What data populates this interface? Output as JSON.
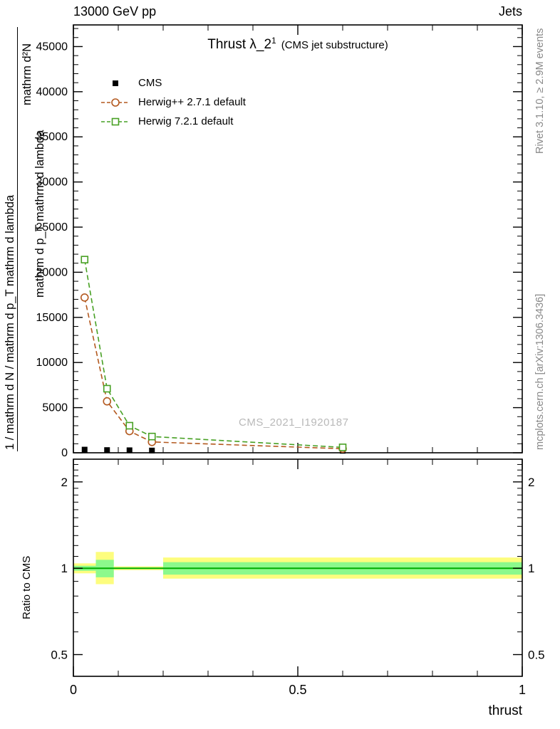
{
  "header": {
    "left": "13000 GeV pp",
    "right": "Jets"
  },
  "title": {
    "main": "Thrust λ_2",
    "sup": "1",
    "paren": "(CMS jet substructure)"
  },
  "watermark": "CMS_2021_I1920187",
  "side_notes": {
    "top_right": "Rivet 3.1.10, ≥ 2.9M events",
    "bottom_right": "mcplots.cern.ch [arXiv:1306.3436]"
  },
  "axes": {
    "ylabel_fragments": {
      "outer": "1 / mathrm d N / mathrm d p_T mathrm d lambda",
      "numerator": "mathrm d²N",
      "denominator": "mathrm d p_T mathrm d lambda"
    },
    "ratio_ylabel": "Ratio to CMS",
    "xlabel": "thrust"
  },
  "chart_data": {
    "type": "line",
    "title": "Thrust λ_2^1 (CMS jet substructure)",
    "xlabel": "thrust",
    "ylabel": "1 / mathrm d N / mathrm d p_T mathrm d lambda · mathrm d²N / mathrm d p_T mathrm d lambda",
    "xlim": [
      0,
      1
    ],
    "ylim": [
      0,
      47400
    ],
    "yticks": [
      0,
      5000,
      10000,
      15000,
      20000,
      25000,
      30000,
      35000,
      40000,
      45000
    ],
    "y_minor_step": 1000,
    "xticks": [
      0,
      0.5,
      1
    ],
    "xtick_labels": [
      "0",
      "0.5",
      "1"
    ],
    "x_minor_step": 0.1,
    "grid": false,
    "legend_position": "upper-left",
    "series": [
      {
        "name": "CMS",
        "marker": "filled-square",
        "color": "#000000",
        "line": false,
        "x": [
          0.025,
          0.075,
          0.125,
          0.175,
          0.6
        ],
        "y": [
          350,
          300,
          280,
          250,
          220
        ]
      },
      {
        "name": "Herwig++ 2.7.1 default",
        "marker": "open-circle",
        "color": "#b3591f",
        "line": true,
        "dash": "7 4",
        "x": [
          0.025,
          0.075,
          0.125,
          0.175,
          0.6
        ],
        "y": [
          17200,
          5700,
          2400,
          1200,
          450
        ]
      },
      {
        "name": "Herwig 7.2.1 default",
        "marker": "open-square",
        "color": "#47a023",
        "line": true,
        "dash": "7 4",
        "x": [
          0.025,
          0.075,
          0.125,
          0.175,
          0.6
        ],
        "y": [
          21400,
          7100,
          3000,
          1800,
          600
        ]
      }
    ],
    "ratio": {
      "ylabel": "Ratio to CMS",
      "scale": "log",
      "ylim": [
        0.42,
        2.4
      ],
      "yticks": [
        0.5,
        1,
        2
      ],
      "ytick_labels": [
        "0.5",
        "1",
        "2"
      ],
      "y_minor_ticks": [
        0.6,
        0.7,
        0.8,
        0.9,
        1.1,
        1.2,
        1.3,
        1.4,
        1.5,
        1.6,
        1.7,
        1.8,
        1.9,
        2.1,
        2.2,
        2.3
      ],
      "line_value": 1,
      "line_color": "#00ad00",
      "band_yellow": "#fdfd7e",
      "band_green": "#8cf98c",
      "segments": [
        {
          "x0": 0.0,
          "x1": 0.05,
          "yellow": [
            0.96,
            1.04
          ],
          "green": [
            0.98,
            1.02
          ]
        },
        {
          "x0": 0.05,
          "x1": 0.09,
          "yellow": [
            0.88,
            1.14
          ],
          "green": [
            0.93,
            1.07
          ]
        },
        {
          "x0": 0.09,
          "x1": 0.2,
          "yellow": [
            0.985,
            1.015
          ],
          "green": [
            0.995,
            1.005
          ]
        },
        {
          "x0": 0.2,
          "x1": 1.0,
          "yellow": [
            0.92,
            1.09
          ],
          "green": [
            0.95,
            1.05
          ]
        }
      ]
    }
  }
}
